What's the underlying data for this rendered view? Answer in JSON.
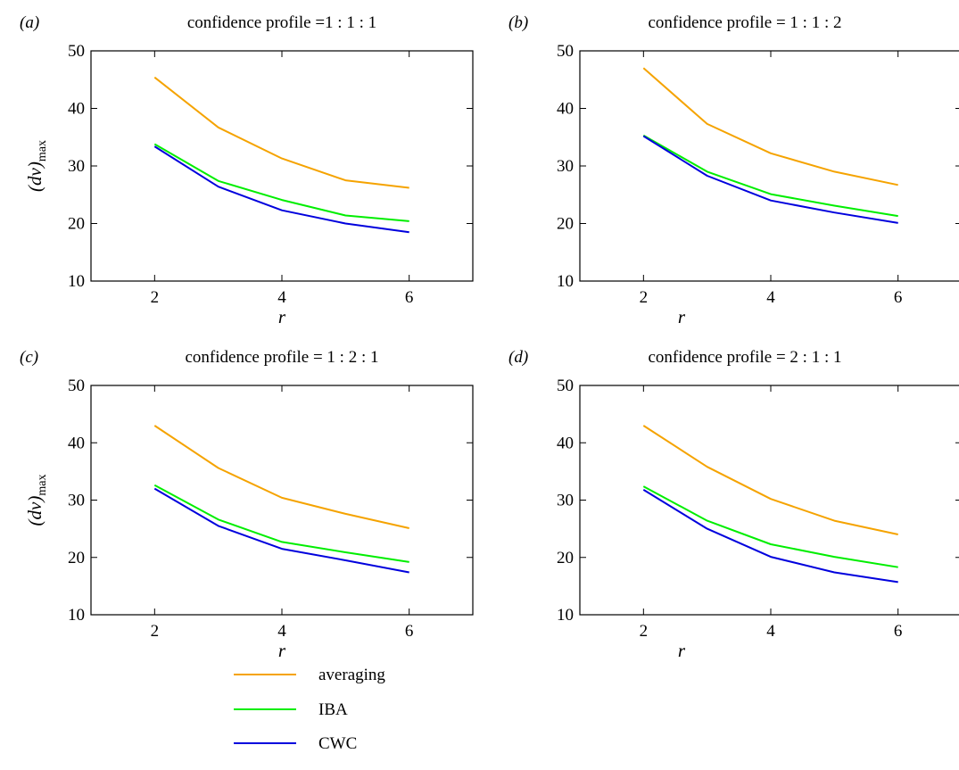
{
  "legend": {
    "entries": [
      {
        "label": "averaging",
        "color": "#f5a300"
      },
      {
        "label": "IBA",
        "color": "#00ee00"
      },
      {
        "label": "CWC",
        "color": "#0000dd"
      }
    ]
  },
  "chart_data": [
    {
      "type": "line",
      "panel_tag": "(a)",
      "title": "confidence profile =1 : 1 : 1",
      "xlabel": "r",
      "ylabel": "(dv)max",
      "xlim": [
        1,
        7
      ],
      "ylim": [
        10,
        50
      ],
      "xticks": [
        2,
        4,
        6
      ],
      "yticks": [
        10,
        20,
        30,
        40,
        50
      ],
      "grid": false,
      "x": [
        2,
        3,
        4,
        5,
        6
      ],
      "series": [
        {
          "name": "averaging",
          "values": [
            45.4,
            36.7,
            31.3,
            27.5,
            26.2
          ]
        },
        {
          "name": "IBA",
          "values": [
            33.8,
            27.4,
            24.1,
            21.4,
            20.4
          ]
        },
        {
          "name": "CWC",
          "values": [
            33.4,
            26.4,
            22.3,
            20.0,
            18.5
          ]
        }
      ]
    },
    {
      "type": "line",
      "panel_tag": "(b)",
      "title": "confidence profile = 1 : 1 : 2",
      "xlabel": "r",
      "ylabel": "",
      "xlim": [
        1,
        7
      ],
      "ylim": [
        10,
        50
      ],
      "xticks": [
        2,
        4,
        6
      ],
      "yticks": [
        10,
        20,
        30,
        40,
        50
      ],
      "grid": false,
      "x": [
        2,
        3,
        4,
        5,
        6
      ],
      "series": [
        {
          "name": "averaging",
          "values": [
            47.0,
            37.3,
            32.2,
            29.0,
            26.7
          ]
        },
        {
          "name": "IBA",
          "values": [
            35.3,
            29.0,
            25.1,
            23.1,
            21.3
          ]
        },
        {
          "name": "CWC",
          "values": [
            35.2,
            28.3,
            24.0,
            21.9,
            20.1
          ]
        }
      ]
    },
    {
      "type": "line",
      "panel_tag": "(c)",
      "title": "confidence profile = 1 : 2 : 1",
      "xlabel": "r",
      "ylabel": "(dv)max",
      "xlim": [
        1,
        7
      ],
      "ylim": [
        10,
        50
      ],
      "xticks": [
        2,
        4,
        6
      ],
      "yticks": [
        10,
        20,
        30,
        40,
        50
      ],
      "grid": false,
      "x": [
        2,
        3,
        4,
        5,
        6
      ],
      "series": [
        {
          "name": "averaging",
          "values": [
            43.0,
            35.6,
            30.4,
            27.6,
            25.1
          ]
        },
        {
          "name": "IBA",
          "values": [
            32.6,
            26.6,
            22.7,
            20.9,
            19.2
          ]
        },
        {
          "name": "CWC",
          "values": [
            32.0,
            25.5,
            21.5,
            19.5,
            17.4
          ]
        }
      ]
    },
    {
      "type": "line",
      "panel_tag": "(d)",
      "title": "confidence profile = 2 : 1 : 1",
      "xlabel": "r",
      "ylabel": "",
      "xlim": [
        1,
        7
      ],
      "ylim": [
        10,
        50
      ],
      "xticks": [
        2,
        4,
        6
      ],
      "yticks": [
        10,
        20,
        30,
        40,
        50
      ],
      "grid": false,
      "x": [
        2,
        3,
        4,
        5,
        6
      ],
      "series": [
        {
          "name": "averaging",
          "values": [
            43.0,
            35.8,
            30.2,
            26.4,
            24.0
          ]
        },
        {
          "name": "IBA",
          "values": [
            32.4,
            26.4,
            22.3,
            20.1,
            18.3
          ]
        },
        {
          "name": "CWC",
          "values": [
            31.8,
            25.0,
            20.1,
            17.4,
            15.7
          ]
        }
      ]
    }
  ]
}
